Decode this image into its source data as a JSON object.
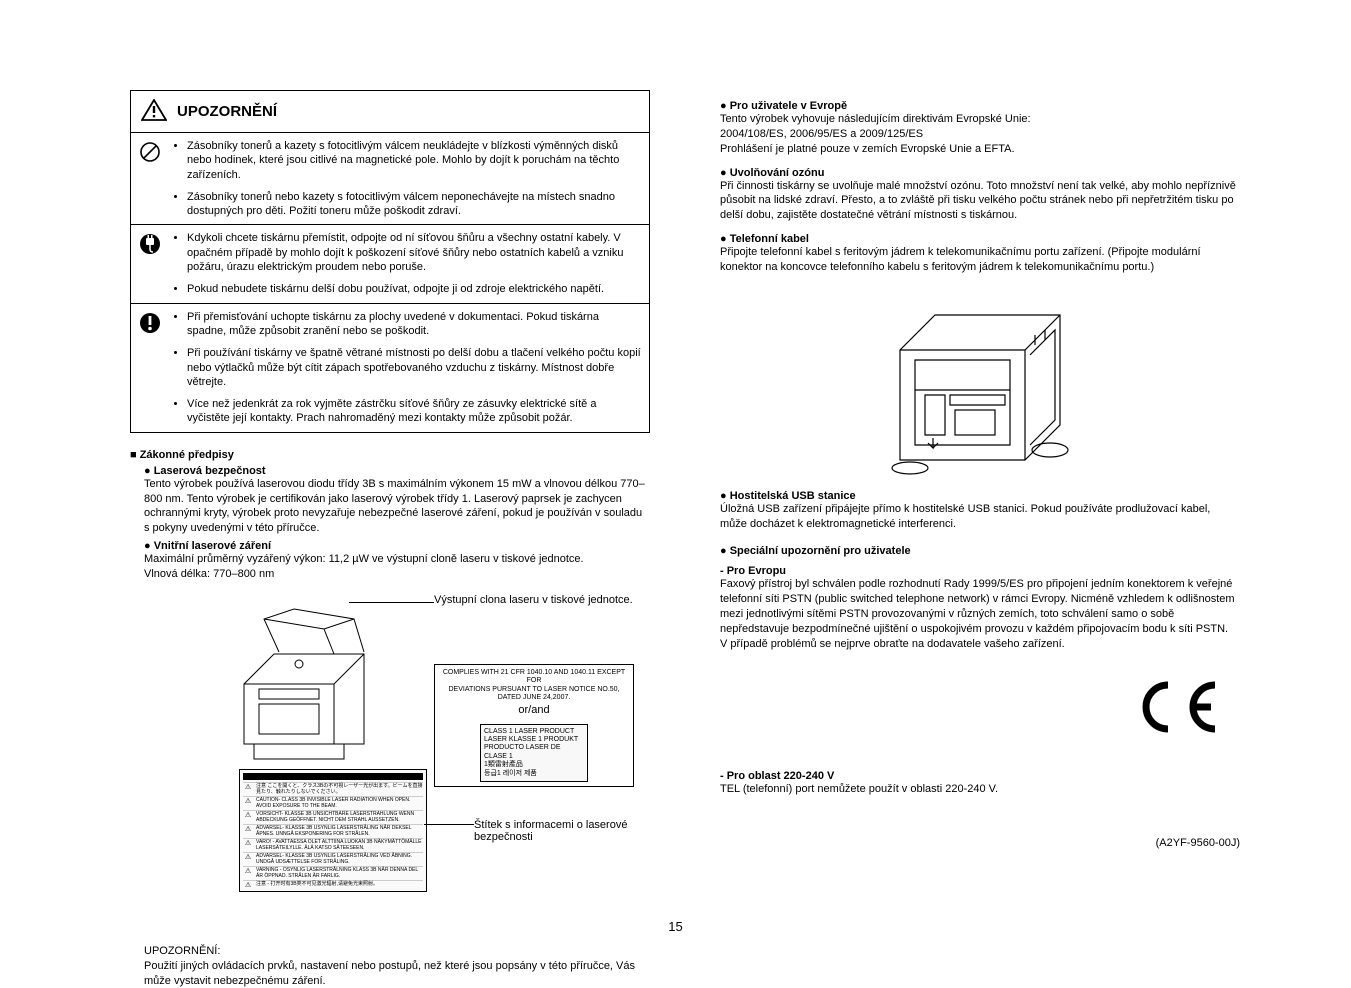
{
  "warning": {
    "title": "UPOZORNĚNÍ",
    "rows": [
      {
        "bullets": [
          "Zásobníky tonerů a kazety s fotocitlivým válcem neukládejte v blízkosti výměnných disků nebo hodinek, které jsou citlivé na magnetické pole. Mohlo by dojít k poruchám na těchto zařízeních.",
          "Zásobníky tonerů nebo kazety s fotocitlivým válcem neponechávejte na místech snadno dostupných pro děti. Požití toneru může poškodit zdraví."
        ]
      },
      {
        "bullets": [
          "Kdykoli chcete tiskárnu přemístit, odpojte od ní síťovou šňůru a všechny ostatní kabely. V opačném případě by mohlo dojít k poškození síťové šňůry nebo ostatních kabelů a vzniku požáru, úrazu elektrickým proudem nebo poruše.",
          "Pokud nebudete tiskárnu delší dobu používat, odpojte ji od zdroje elektrického napětí."
        ]
      },
      {
        "bullets": [
          "Při přemisťování uchopte tiskárnu za plochy uvedené v dokumentaci. Pokud tiskárna spadne, může způsobit zranění nebo se poškodit.",
          "Při používání tiskárny ve špatně větrané místnosti po delší dobu a tlačení velkého počtu kopií nebo výtlačků může být cítit zápach spotřebovaného vzduchu z tiskárny. Místnost dobře větrejte.",
          "Více než jedenkrát za rok vyjměte zástrčku síťové šňůry ze zásuvky elektrické sítě a vyčistěte její kontakty. Prach nahromaděný mezi kontakty může způsobit požár."
        ]
      }
    ]
  },
  "legal": {
    "heading": "■ Zákonné předpisy",
    "laser_head": "● Laserová bezpečnost",
    "laser_body": "Tento výrobek používá laserovou diodu třídy 3B s maximálním výkonem 15 mW a vlnovou délkou 770–800 nm. Tento výrobek je certifikován jako laserový výrobek třídy 1. Laserový paprsek je zachycen ochrannými kryty, výrobek proto nevyzařuje nebezpečné laserové záření, pokud je používán v souladu s pokyny uvedenými v této příručce.",
    "internal_head": "● Vnitřní laserové záření",
    "internal_body1": "Maximální průměrný vyzářený výkon: 11,2 µW ve výstupní cloně laseru v tiskové jednotce.",
    "internal_body2": "Vlnová délka: 770–800 nm"
  },
  "diagram": {
    "label1": "Výstupní clona laseru v tiskové jednotce.",
    "label2": "Štítek s informacemi o laserové bezpečnosti",
    "compliance_line1": "COMPLIES WITH 21 CFR 1040.10 AND 1040.11 EXCEPT FOR",
    "compliance_line2": "DEVIATIONS PURSUANT TO LASER NOTICE NO.50, DATED JUNE 24,2007.",
    "or_and": "or/and",
    "class_box": "CLASS 1 LASER PRODUCT\nLASER KLASSE 1 PRODUKT\nPRODUCTO LASER DE CLASE 1\n1類雷射產品\n등급1 레이저 제품",
    "safety_rows": [
      "注意    ここを開くと、クラス3Bの不可視レーザー光が出ます。ビームを直接見たり、触れたりしないでください。",
      "CAUTION- CLASS 3B INVISIBLE LASER RADIATION WHEN OPEN. AVOID EXPOSURE TO THE BEAM.",
      "VORSICHT- KLASSE 3B UNSICHTBARE LASERSTRAHLUNG WENN ABDECKUNG GEÖFFNET. NICHT DEM STRAHL AUSSETZEN.",
      "ADVARSEL- KLASSE 3B USYNLIG LASERSTRÅLING NÅR DEKSEL ÅPNES. UNNGÅ EKSPONERING FOR STRÅLEN.",
      "VARO! - AVATTAESSA OLET ALTTIINA LUOKAN 3B NÄKYMÄTTÖMÄLLE LASERSÄTEILYLLE. ÄLÄ KATSO SÄTEESEEN.",
      "ADVARSEL- KLASSE 3B USYNLIG LASERSTRÅLING VED ÅBNING. UNDGÅ UDSÆTTELSE FOR STRÅLING.",
      "VARNING - OSYNLIG LASERSTRÅLNING KLASS 3B NÄR DENNA DEL ÄR ÖPPNAD. STRÅLEN ÄR FARLIG.",
      "注意 - 打开时有3B类不可见激光辐射,请避免光束照射。",
      "주의 - 열리면 등급 3B 비가시 레이저 방사선이 방출됩니다. 광선에 노출을 피하십시오."
    ]
  },
  "footer": {
    "head": "UPOZORNĚNÍ:",
    "body": "Použití jiných ovládacích prvků, nastavení nebo postupů, než které jsou popsány v této příručce, Vás může vystavit nebezpečnému záření."
  },
  "right": {
    "eu_head": "● Pro uživatele v Evropě",
    "eu_body": "Tento výrobek vyhovuje následujícím direktivám Evropské Unie:\n2004/108/ES, 2006/95/ES a 2009/125/ES\nProhlášení je platné pouze v zemích Evropské Unie a EFTA.",
    "ozone_head": "● Uvolňování ozónu",
    "ozone_body": "Při činnosti tiskárny se uvolňuje malé množství ozónu. Toto množství není tak velké, aby mohlo nepříznivě působit na lidské zdraví. Přesto, a to zvláště při tisku velkého počtu stránek nebo při nepřetržitém tisku po delší dobu, zajistěte dostatečné větrání místnosti s tiskárnou.",
    "phone_head": "● Telefonní kabel",
    "phone_body": "Připojte telefonní kabel s feritovým jádrem k telekomunikačnímu portu zařízení. (Připojte modulární konektor na koncovce telefonního kabelu s feritovým jádrem k telekomunikačnímu portu.)",
    "usb_head": "● Hostitelská USB stanice",
    "usb_body": "Úložná USB zařízení připájejte přímo k hostitelské USB stanici. Pokud používáte prodlužovací kabel, může docházet k elektromagnetické interferenci.",
    "special_head": "● Speciální upozornění pro uživatele",
    "eu2_head": "- Pro Evropu",
    "eu2_body": "Faxový přístroj byl schválen podle rozhodnutí Rady 1999/5/ES pro připojení jedním konektorem k veřejné telefonní síti PSTN (public switched telephone network) v rámci Evropy. Nicméně vzhledem k odlišnostem mezi jednotlivými sítěmi PSTN provozovanými v různých zemích, toto schválení samo o sobě nepředstavuje bezpodmínečné ujištění o uspokojivém provozu v každém připojovacím bodu k síti PSTN.\nV případě problémů se nejprve obraťte na dodavatele vašeho zařízení.",
    "v220_head": "- Pro oblast 220-240 V",
    "v220_body": "TEL (telefonní) port nemůžete použít v oblasti 220-240 V.",
    "doc_code": "(A2YF-9560-00J)"
  },
  "page_number": "15"
}
